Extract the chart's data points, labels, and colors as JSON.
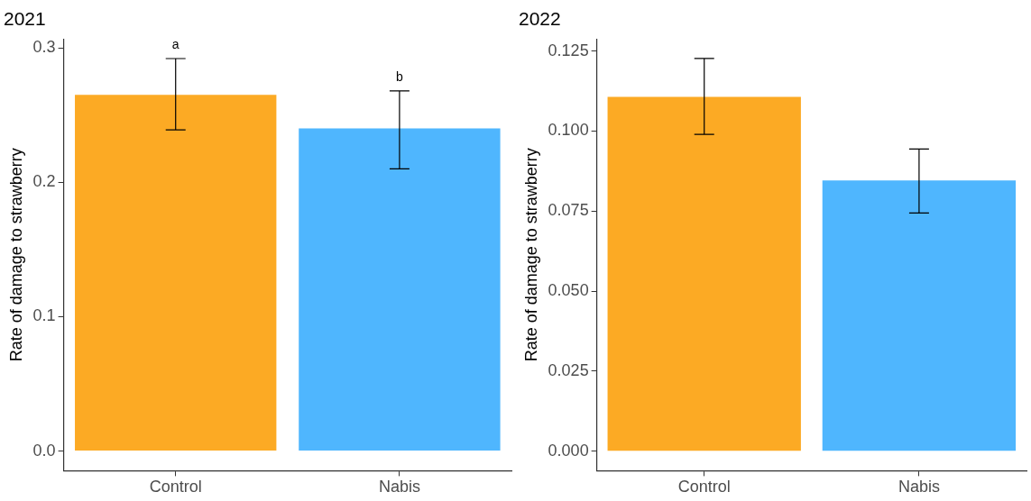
{
  "chart_data": [
    {
      "type": "bar",
      "title": "2021",
      "ylabel": "Rate of damage to strawberry",
      "categories": [
        "Control",
        "Nabis"
      ],
      "values": [
        0.265,
        0.24
      ],
      "colors": [
        "#fcaa24",
        "#4fb6fe"
      ],
      "errors": [
        [
          0.239,
          0.292
        ],
        [
          0.21,
          0.268
        ]
      ],
      "ylim": [
        -0.0146,
        0.3066
      ],
      "yticks": [
        {
          "value": 0,
          "label": "0.0"
        },
        0.1,
        0.2,
        0.3
      ],
      "grid": false,
      "legend": false,
      "annotations": [
        "a",
        "b"
      ]
    },
    {
      "type": "bar",
      "title": "2022",
      "ylabel": "Rate of damage to strawberry",
      "categories": [
        "Control",
        "Nabis"
      ],
      "values": [
        0.1107,
        0.0846
      ],
      "colors": [
        "#fcaa24",
        "#4fb6fe"
      ],
      "errors": [
        [
          0.099,
          0.1227
        ],
        [
          0.0744,
          0.0944
        ]
      ],
      "ylim": [
        -0.0061,
        0.1288
      ],
      "yticks": [
        {
          "value": 0,
          "label": "0.000"
        },
        0.025,
        {
          "value": 0.05,
          "label": "0.050"
        },
        0.075,
        {
          "value": 0.1,
          "label": "0.100"
        },
        0.125
      ],
      "grid": false,
      "legend": false
    }
  ]
}
